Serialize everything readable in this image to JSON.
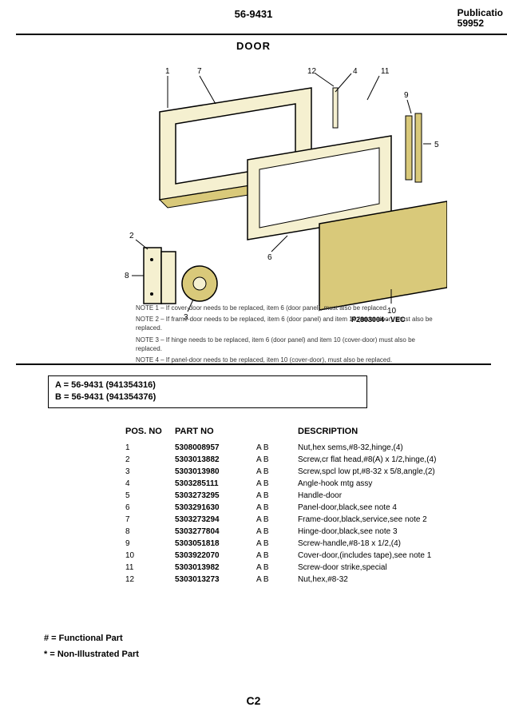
{
  "header": {
    "model_no": "56-9431",
    "publication_label": "Publicatio",
    "publication_no": "59952"
  },
  "section_title": "DOOR",
  "diagram": {
    "code": "P2803004 - VEC",
    "callouts": [
      "1",
      "2",
      "3",
      "4",
      "5",
      "6",
      "7",
      "8",
      "9",
      "10",
      "11",
      "12"
    ],
    "stroke": "#000000",
    "fill_panel": "#d9c97a",
    "fill_light": "#f5f0d0"
  },
  "notes": [
    "NOTE 1 – If cover-door needs to be replaced, item 6 (door panel), must also be replaced.",
    "NOTE 2 – If frame-door needs to be replaced, item 6 (door panel) and item 10 (cover-door), must also be replaced.",
    "NOTE 3 – If hinge needs to be replaced, item 6 (door panel) and item 10 (cover-door) must also be replaced.",
    "NOTE 4 – If panel-door needs to be replaced, item 10 (cover-door), must also be replaced."
  ],
  "model_box": {
    "a": "A  =  56-9431 (941354316)",
    "b": "B  =  56-9431 (941354376)"
  },
  "table": {
    "headers": {
      "pos": "POS. NO",
      "part": "PART NO",
      "desc": "DESCRIPTION"
    },
    "rows": [
      {
        "pos": "1",
        "part": "5308008957",
        "ab": "A  B",
        "desc": "Nut,hex sems,#8-32,hinge,(4)"
      },
      {
        "pos": "2",
        "part": "5303013882",
        "ab": "A  B",
        "desc": "Screw,cr flat head,#8(A) x 1/2,hinge,(4)"
      },
      {
        "pos": "3",
        "part": "5303013980",
        "ab": "A  B",
        "desc": "Screw,spcl low pt,#8-32 x 5/8,angle,(2)"
      },
      {
        "pos": "4",
        "part": "5303285111",
        "ab": "A  B",
        "desc": "Angle-hook mtg assy"
      },
      {
        "pos": "5",
        "part": "5303273295",
        "ab": "A  B",
        "desc": "Handle-door"
      },
      {
        "pos": "6",
        "part": "5303291630",
        "ab": "A  B",
        "desc": "Panel-door,black,see note 4"
      },
      {
        "pos": "7",
        "part": "5303273294",
        "ab": "A  B",
        "desc": "Frame-door,black,service,see note 2"
      },
      {
        "pos": "8",
        "part": "5303277804",
        "ab": "A  B",
        "desc": "Hinge-door,black,see note 3"
      },
      {
        "pos": "9",
        "part": "5303051818",
        "ab": "A  B",
        "desc": "Screw-handle,#8-18 x 1/2,(4)"
      },
      {
        "pos": "10",
        "part": "5303922070",
        "ab": "A  B",
        "desc": "Cover-door,(includes tape),see note 1"
      },
      {
        "pos": "11",
        "part": "5303013982",
        "ab": "A  B",
        "desc": "Screw-door strike,special"
      },
      {
        "pos": "12",
        "part": "5303013273",
        "ab": "A  B",
        "desc": "Nut,hex,#8-32"
      }
    ]
  },
  "legend": {
    "functional": "#  =  Functional Part",
    "nonillustrated": "*  =  Non-Illustrated Part"
  },
  "page_no": "C2"
}
